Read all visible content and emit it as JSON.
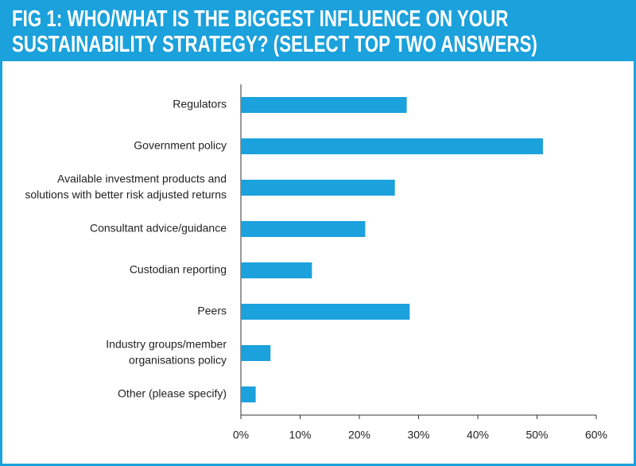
{
  "chart_data": {
    "type": "barh",
    "title": "FIG 1: WHO/WHAT IS THE BIGGEST INFLUENCE ON YOUR SUSTAINABILITY STRATEGY? (SELECT TOP TWO ANSWERS)",
    "categories": [
      [
        "Regulators"
      ],
      [
        "Government policy"
      ],
      [
        "Available investment products and",
        "solutions with better risk adjusted returns"
      ],
      [
        "Consultant advice/guidance"
      ],
      [
        "Custodian reporting"
      ],
      [
        "Peers"
      ],
      [
        "Industry groups/member",
        "organisations policy"
      ],
      [
        "Other (please specify)"
      ]
    ],
    "values": [
      28,
      51,
      26,
      21,
      12,
      28.5,
      5,
      2.5
    ],
    "color": "#1ba1dc",
    "xlim": [
      0,
      60
    ],
    "xticks": [
      {
        "value": 0,
        "label": "0%"
      },
      {
        "value": 10,
        "label": "10%"
      },
      {
        "value": 20,
        "label": "20%"
      },
      {
        "value": 30,
        "label": "30%"
      },
      {
        "value": 40,
        "label": "40%"
      },
      {
        "value": 50,
        "label": "50%"
      },
      {
        "value": 60,
        "label": "60%"
      }
    ]
  }
}
